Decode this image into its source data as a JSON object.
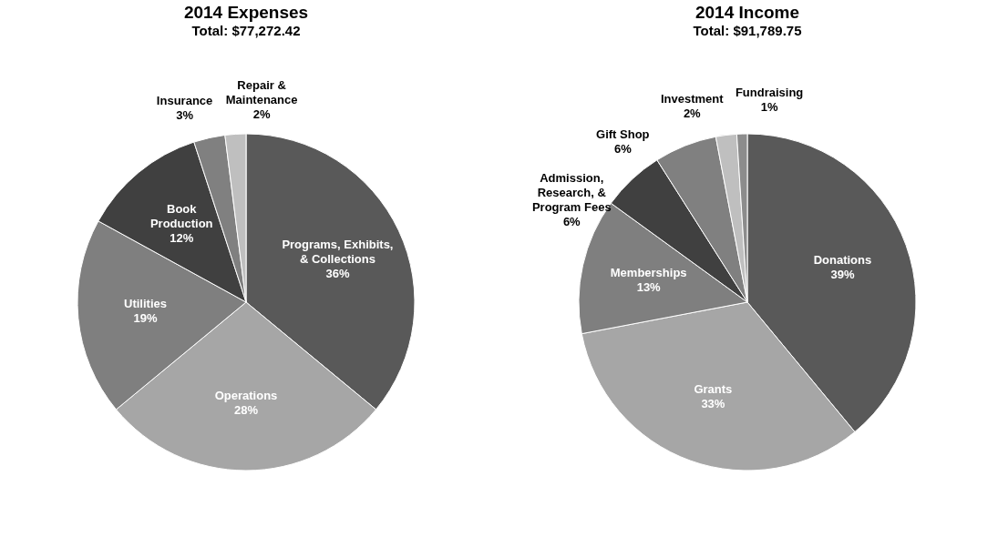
{
  "chart_data": [
    {
      "type": "pie",
      "title": "2014 Expenses",
      "subtitle": "Total: $77,272.42",
      "categories": [
        "Programs, Exhibits, & Collections",
        "Operations",
        "Utilities",
        "Book Production",
        "Insurance",
        "Repair & Maintenance"
      ],
      "values": [
        36,
        28,
        19,
        12,
        3,
        2
      ],
      "value_labels": [
        "36%",
        "28%",
        "19%",
        "12%",
        "3%",
        "2%"
      ],
      "colors": [
        "#595959",
        "#a6a6a6",
        "#7f7f7f",
        "#404040",
        "#808080",
        "#bfbfbf"
      ]
    },
    {
      "type": "pie",
      "title": "2014 Income",
      "subtitle": "Total: $91,789.75",
      "categories": [
        "Donations",
        "Grants",
        "Memberships",
        "Admission, Research, & Program Fees",
        "Gift Shop",
        "Investment",
        "Fundraising"
      ],
      "values": [
        39,
        33,
        13,
        6,
        6,
        2,
        1
      ],
      "value_labels": [
        "39%",
        "33%",
        "13%",
        "6%",
        "6%",
        "2%",
        "1%"
      ],
      "colors": [
        "#595959",
        "#a6a6a6",
        "#7f7f7f",
        "#404040",
        "#808080",
        "#bfbfbf",
        "#8c8c8c"
      ]
    }
  ]
}
